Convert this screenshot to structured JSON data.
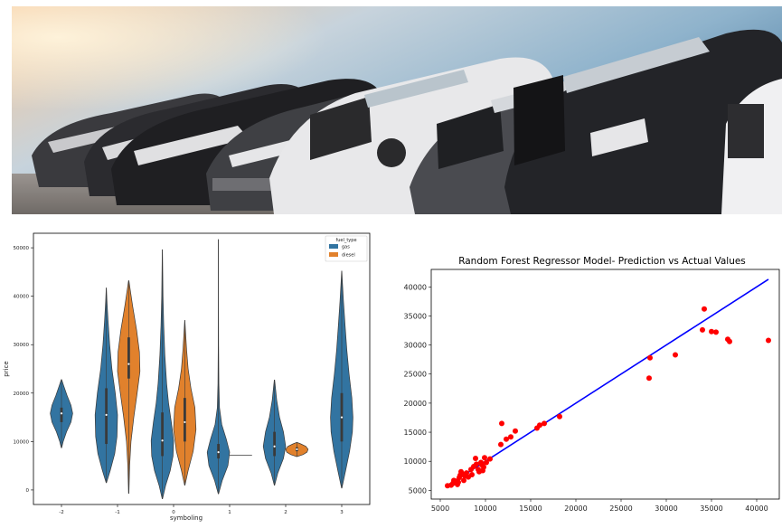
{
  "banner": {
    "icon": "row-of-parked-cars-photo"
  },
  "violin_chart": {
    "xlabel": "symboling",
    "ylabel": "price",
    "legend_title": "fuel_type",
    "x_ticks": [
      "-2",
      "-1",
      "0",
      "1",
      "2",
      "3"
    ],
    "y_ticks": [
      "0",
      "10000",
      "20000",
      "30000",
      "40000",
      "50000"
    ]
  },
  "scatter_chart": {
    "title": "Random Forest Regressor Model- Prediction vs Actual Values",
    "x_ticks": [
      "5000",
      "10000",
      "15000",
      "20000",
      "25000",
      "30000",
      "35000",
      "40000"
    ],
    "y_ticks": [
      "5000",
      "10000",
      "15000",
      "20000",
      "25000",
      "30000",
      "35000",
      "40000"
    ]
  },
  "chart_data": [
    {
      "type": "violin",
      "xlabel": "symboling",
      "ylabel": "price",
      "ylim": [
        -3000,
        53000
      ],
      "legend_placement": "top-right",
      "categories": [
        "-2",
        "-1",
        "0",
        "1",
        "2",
        "3"
      ],
      "series": [
        {
          "name": "gas",
          "color": "#3274a1",
          "violins": [
            {
              "category": "-2",
              "min": 8700,
              "max": 22800,
              "q1": 14000,
              "median": 15800,
              "q3": 17000,
              "profile": [
                [
                  8700,
                  0.02
                ],
                [
                  10000,
                  0.15
                ],
                [
                  12000,
                  0.45
                ],
                [
                  14000,
                  0.85
                ],
                [
                  15800,
                  1.0
                ],
                [
                  17500,
                  0.85
                ],
                [
                  19500,
                  0.5
                ],
                [
                  21500,
                  0.2
                ],
                [
                  22800,
                  0.02
                ]
              ]
            },
            {
              "category": "-1",
              "min": 1500,
              "max": 41700,
              "q1": 9500,
              "median": 15500,
              "q3": 21000,
              "profile": [
                [
                  1500,
                  0.02
                ],
                [
                  4000,
                  0.35
                ],
                [
                  7500,
                  0.75
                ],
                [
                  11000,
                  0.95
                ],
                [
                  15500,
                  1.0
                ],
                [
                  20000,
                  0.8
                ],
                [
                  25000,
                  0.5
                ],
                [
                  30000,
                  0.3
                ],
                [
                  35000,
                  0.15
                ],
                [
                  39000,
                  0.06
                ],
                [
                  41700,
                  0.01
                ]
              ]
            },
            {
              "category": "0",
              "min": -1800,
              "max": 49600,
              "q1": 7000,
              "median": 10200,
              "q3": 16000,
              "profile": [
                [
                  -1800,
                  0.02
                ],
                [
                  1000,
                  0.3
                ],
                [
                  4000,
                  0.7
                ],
                [
                  7000,
                  0.95
                ],
                [
                  10200,
                  1.0
                ],
                [
                  14000,
                  0.8
                ],
                [
                  18000,
                  0.55
                ],
                [
                  22000,
                  0.38
                ],
                [
                  28000,
                  0.22
                ],
                [
                  34000,
                  0.12
                ],
                [
                  40000,
                  0.06
                ],
                [
                  45000,
                  0.03
                ],
                [
                  49600,
                  0.005
                ]
              ]
            },
            {
              "category": "1",
              "min": -800,
              "max": 51700,
              "q1": 6500,
              "median": 7800,
              "q3": 9500,
              "profile": [
                [
                  -800,
                  0.02
                ],
                [
                  2000,
                  0.35
                ],
                [
                  5000,
                  0.85
                ],
                [
                  7800,
                  1.0
                ],
                [
                  10500,
                  0.7
                ],
                [
                  13500,
                  0.3
                ],
                [
                  17000,
                  0.1
                ],
                [
                  22000,
                  0.04
                ],
                [
                  30000,
                  0.02
                ],
                [
                  40000,
                  0.012
                ],
                [
                  51700,
                  0.005
                ]
              ]
            },
            {
              "category": "2",
              "min": 1000,
              "max": 22700,
              "q1": 7000,
              "median": 9000,
              "q3": 12000,
              "profile": [
                [
                  1000,
                  0.02
                ],
                [
                  3500,
                  0.3
                ],
                [
                  6500,
                  0.8
                ],
                [
                  9000,
                  1.0
                ],
                [
                  12000,
                  0.8
                ],
                [
                  15000,
                  0.45
                ],
                [
                  18500,
                  0.2
                ],
                [
                  22700,
                  0.02
                ]
              ]
            },
            {
              "category": "3",
              "min": 400,
              "max": 45200,
              "q1": 10000,
              "median": 15000,
              "q3": 20000,
              "profile": [
                [
                  400,
                  0.02
                ],
                [
                  4000,
                  0.35
                ],
                [
                  8000,
                  0.7
                ],
                [
                  12000,
                  0.95
                ],
                [
                  15000,
                  1.0
                ],
                [
                  19000,
                  0.9
                ],
                [
                  24000,
                  0.65
                ],
                [
                  29000,
                  0.45
                ],
                [
                  34000,
                  0.3
                ],
                [
                  39000,
                  0.15
                ],
                [
                  43000,
                  0.06
                ],
                [
                  45200,
                  0.01
                ]
              ]
            }
          ]
        },
        {
          "name": "diesel",
          "color": "#e1812c",
          "violins": [
            {
              "category": "-1",
              "min": -700,
              "max": 43200,
              "q1": 23000,
              "median": 26000,
              "q3": 31500,
              "profile": [
                [
                  -700,
                  0.02
                ],
                [
                  5000,
                  0.08
                ],
                [
                  10000,
                  0.2
                ],
                [
                  15000,
                  0.45
                ],
                [
                  20000,
                  0.75
                ],
                [
                  24500,
                  1.0
                ],
                [
                  28500,
                  0.95
                ],
                [
                  33000,
                  0.7
                ],
                [
                  38000,
                  0.35
                ],
                [
                  41500,
                  0.12
                ],
                [
                  43200,
                  0.02
                ]
              ]
            },
            {
              "category": "0",
              "min": 1000,
              "max": 35000,
              "q1": 10000,
              "median": 14000,
              "q3": 19000,
              "profile": [
                [
                  1000,
                  0.02
                ],
                [
                  4000,
                  0.3
                ],
                [
                  8000,
                  0.75
                ],
                [
                  12500,
                  1.0
                ],
                [
                  17000,
                  0.9
                ],
                [
                  21000,
                  0.55
                ],
                [
                  25000,
                  0.3
                ],
                [
                  29000,
                  0.16
                ],
                [
                  33000,
                  0.06
                ],
                [
                  35000,
                  0.01
                ]
              ]
            },
            {
              "category": "1",
              "min": 7100,
              "max": 7300,
              "q1": 7100,
              "median": 7200,
              "q3": 7300,
              "profile": [
                [
                  7100,
                  1.0
                ],
                [
                  7300,
                  1.0
                ]
              ]
            },
            {
              "category": "2",
              "min": 6900,
              "max": 9800,
              "q1": 8000,
              "median": 8400,
              "q3": 8800,
              "profile": [
                [
                  6900,
                  0.02
                ],
                [
                  7300,
                  0.55
                ],
                [
                  7800,
                  0.9
                ],
                [
                  8400,
                  1.0
                ],
                [
                  9000,
                  0.8
                ],
                [
                  9500,
                  0.35
                ],
                [
                  9800,
                  0.02
                ]
              ]
            }
          ]
        }
      ]
    },
    {
      "type": "scatter",
      "title": "Random Forest Regressor Model- Prediction vs Actual Values",
      "xlabel": "",
      "ylabel": "",
      "xlim": [
        4000,
        42500
      ],
      "ylim": [
        3500,
        43000
      ],
      "grid": false,
      "series": [
        {
          "color": "#ff0000",
          "x": [
            5800,
            6200,
            6400,
            6500,
            6700,
            6900,
            7000,
            7100,
            7200,
            7300,
            7400,
            7600,
            7700,
            7900,
            8100,
            8400,
            8500,
            8700,
            8900,
            9000,
            9200,
            9300,
            9500,
            9600,
            9700,
            9800,
            9900,
            10100,
            10500,
            11700,
            11800,
            12300,
            12800,
            13300,
            15700,
            16000,
            16500,
            18200,
            28100,
            28200,
            31000,
            34000,
            34200,
            35000,
            35500,
            36800,
            37000,
            41300
          ],
          "y": [
            5800,
            5900,
            6200,
            6700,
            6600,
            6000,
            6400,
            7200,
            7600,
            8200,
            7900,
            6700,
            7500,
            8000,
            7300,
            8600,
            7700,
            9100,
            10500,
            9500,
            8600,
            8200,
            9800,
            9400,
            8400,
            9000,
            10600,
            9800,
            10400,
            12900,
            16500,
            13800,
            14200,
            15200,
            15700,
            16200,
            16500,
            17700,
            24300,
            27800,
            28300,
            32600,
            36200,
            32300,
            32200,
            31000,
            30600,
            30800
          ]
        },
        {
          "color": "#0000ff",
          "x": [
            5800,
            41300
          ],
          "y": [
            5800,
            41300
          ]
        }
      ]
    }
  ]
}
